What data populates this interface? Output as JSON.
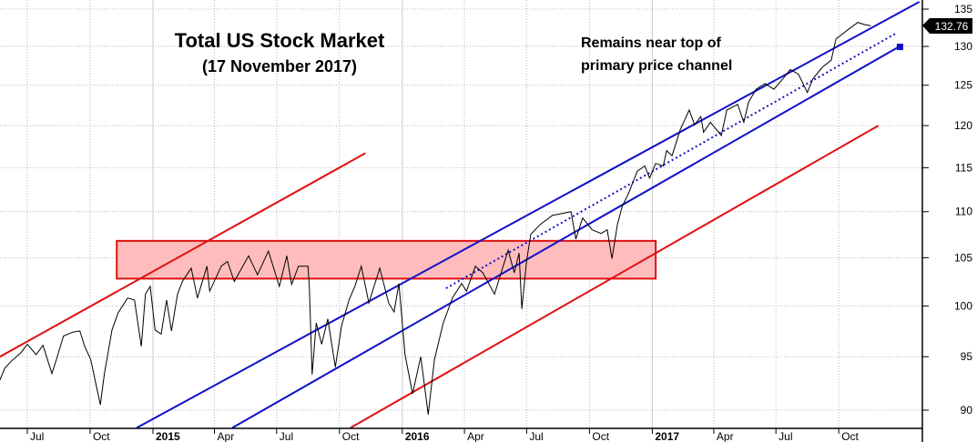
{
  "title": "Total US Stock Market",
  "subtitle": "(17 November 2017)",
  "annotation": [
    "Remains near top of",
    "primary price channel"
  ],
  "last_price_label": "132.76",
  "chart_data": {
    "type": "line",
    "title": "Total US Stock Market",
    "subtitle": "(17 November 2017)",
    "y_scale": "log",
    "ylim": [
      88.4,
      136
    ],
    "y_ticks": [
      90,
      95,
      100,
      105,
      110,
      115,
      120,
      125,
      130,
      135
    ],
    "x_ticks": [
      {
        "label": "Jul",
        "date": "2014-07-01",
        "year": false
      },
      {
        "label": "Oct",
        "date": "2014-10-01",
        "year": false
      },
      {
        "label": "2015",
        "date": "2015-01-01",
        "year": true
      },
      {
        "label": "Apr",
        "date": "2015-04-01",
        "year": false
      },
      {
        "label": "Jul",
        "date": "2015-07-01",
        "year": false
      },
      {
        "label": "Oct",
        "date": "2015-10-01",
        "year": false
      },
      {
        "label": "2016",
        "date": "2016-01-01",
        "year": true
      },
      {
        "label": "Apr",
        "date": "2016-04-01",
        "year": false
      },
      {
        "label": "Jul",
        "date": "2016-07-01",
        "year": false
      },
      {
        "label": "Oct",
        "date": "2016-10-01",
        "year": false
      },
      {
        "label": "2017",
        "date": "2017-01-01",
        "year": true
      },
      {
        "label": "Apr",
        "date": "2017-04-01",
        "year": false
      },
      {
        "label": "Jul",
        "date": "2017-07-01",
        "year": false
      },
      {
        "label": "Oct",
        "date": "2017-10-01",
        "year": false
      }
    ],
    "grid": true,
    "series": [
      {
        "color": "#000000",
        "points": [
          [
            "2014-05-22",
            92.8
          ],
          [
            "2014-05-29",
            93.9
          ],
          [
            "2014-06-08",
            94.6
          ],
          [
            "2014-06-22",
            95.4
          ],
          [
            "2014-07-01",
            96.2
          ],
          [
            "2014-07-14",
            95.2
          ],
          [
            "2014-07-24",
            96.1
          ],
          [
            "2014-08-06",
            93.4
          ],
          [
            "2014-08-13",
            94.8
          ],
          [
            "2014-08-23",
            97.0
          ],
          [
            "2014-09-06",
            97.4
          ],
          [
            "2014-09-16",
            97.5
          ],
          [
            "2014-09-23",
            96.0
          ],
          [
            "2014-10-02",
            94.7
          ],
          [
            "2014-10-16",
            90.5
          ],
          [
            "2014-10-22",
            93.4
          ],
          [
            "2014-11-02",
            97.6
          ],
          [
            "2014-11-11",
            99.3
          ],
          [
            "2014-11-25",
            100.8
          ],
          [
            "2014-12-05",
            100.6
          ],
          [
            "2014-12-15",
            96.0
          ],
          [
            "2014-12-21",
            101.2
          ],
          [
            "2014-12-28",
            102.0
          ],
          [
            "2015-01-04",
            97.6
          ],
          [
            "2015-01-13",
            97.2
          ],
          [
            "2015-01-21",
            100.6
          ],
          [
            "2015-01-28",
            97.5
          ],
          [
            "2015-02-06",
            101.2
          ],
          [
            "2015-02-13",
            102.5
          ],
          [
            "2015-02-26",
            103.9
          ],
          [
            "2015-03-07",
            100.8
          ],
          [
            "2015-03-21",
            104.1
          ],
          [
            "2015-03-25",
            101.5
          ],
          [
            "2015-04-11",
            104.1
          ],
          [
            "2015-04-20",
            104.6
          ],
          [
            "2015-04-30",
            102.5
          ],
          [
            "2015-05-21",
            105.2
          ],
          [
            "2015-06-03",
            103.2
          ],
          [
            "2015-06-19",
            105.7
          ],
          [
            "2015-07-05",
            102.0
          ],
          [
            "2015-07-16",
            105.2
          ],
          [
            "2015-07-23",
            102.2
          ],
          [
            "2015-08-02",
            104.1
          ],
          [
            "2015-08-16",
            104.1
          ],
          [
            "2015-08-18",
            101.8
          ],
          [
            "2015-08-22",
            93.3
          ],
          [
            "2015-08-28",
            98.3
          ],
          [
            "2015-09-05",
            96.2
          ],
          [
            "2015-09-14",
            98.7
          ],
          [
            "2015-09-25",
            94.0
          ],
          [
            "2015-10-04",
            98.0
          ],
          [
            "2015-10-15",
            100.6
          ],
          [
            "2015-10-24",
            102.1
          ],
          [
            "2015-11-02",
            104.1
          ],
          [
            "2015-11-13",
            100.3
          ],
          [
            "2015-11-29",
            103.9
          ],
          [
            "2015-12-12",
            100.3
          ],
          [
            "2015-12-20",
            99.4
          ],
          [
            "2015-12-27",
            102.3
          ],
          [
            "2016-01-05",
            95.2
          ],
          [
            "2016-01-16",
            91.5
          ],
          [
            "2016-01-28",
            95.0
          ],
          [
            "2016-02-08",
            89.6
          ],
          [
            "2016-02-17",
            94.7
          ],
          [
            "2016-03-01",
            98.3
          ],
          [
            "2016-03-15",
            100.9
          ],
          [
            "2016-03-28",
            102.3
          ],
          [
            "2016-04-04",
            101.5
          ],
          [
            "2016-04-17",
            104.1
          ],
          [
            "2016-04-28",
            103.4
          ],
          [
            "2016-05-15",
            101.2
          ],
          [
            "2016-06-04",
            105.8
          ],
          [
            "2016-06-13",
            103.4
          ],
          [
            "2016-06-20",
            105.5
          ],
          [
            "2016-06-24",
            99.7
          ],
          [
            "2016-07-01",
            104.7
          ],
          [
            "2016-07-07",
            107.5
          ],
          [
            "2016-07-21",
            108.6
          ],
          [
            "2016-08-08",
            109.6
          ],
          [
            "2016-08-22",
            109.8
          ],
          [
            "2016-09-04",
            110.0
          ],
          [
            "2016-09-11",
            107.0
          ],
          [
            "2016-09-21",
            109.3
          ],
          [
            "2016-10-05",
            108.0
          ],
          [
            "2016-10-18",
            107.6
          ],
          [
            "2016-10-27",
            108.0
          ],
          [
            "2016-11-03",
            104.9
          ],
          [
            "2016-11-11",
            108.6
          ],
          [
            "2016-11-18",
            110.6
          ],
          [
            "2016-11-27",
            112.0
          ],
          [
            "2016-12-10",
            114.6
          ],
          [
            "2016-12-21",
            115.2
          ],
          [
            "2016-12-28",
            113.8
          ],
          [
            "2017-01-06",
            115.5
          ],
          [
            "2017-01-17",
            115.2
          ],
          [
            "2017-01-22",
            117.0
          ],
          [
            "2017-01-30",
            116.4
          ],
          [
            "2017-02-11",
            119.5
          ],
          [
            "2017-02-24",
            121.9
          ],
          [
            "2017-03-04",
            120.1
          ],
          [
            "2017-03-13",
            121.1
          ],
          [
            "2017-03-17",
            119.2
          ],
          [
            "2017-03-27",
            120.4
          ],
          [
            "2017-04-12",
            118.8
          ],
          [
            "2017-04-20",
            121.9
          ],
          [
            "2017-05-06",
            122.6
          ],
          [
            "2017-05-15",
            120.4
          ],
          [
            "2017-05-22",
            122.9
          ],
          [
            "2017-06-02",
            124.5
          ],
          [
            "2017-06-15",
            125.2
          ],
          [
            "2017-06-28",
            124.5
          ],
          [
            "2017-07-11",
            125.8
          ],
          [
            "2017-07-22",
            127.0
          ],
          [
            "2017-08-03",
            126.4
          ],
          [
            "2017-08-16",
            124.1
          ],
          [
            "2017-08-24",
            125.8
          ],
          [
            "2017-09-07",
            127.3
          ],
          [
            "2017-09-20",
            128.2
          ],
          [
            "2017-09-27",
            131.0
          ],
          [
            "2017-10-03",
            131.4
          ],
          [
            "2017-10-17",
            132.4
          ],
          [
            "2017-10-29",
            133.2
          ],
          [
            "2017-11-08",
            132.9
          ],
          [
            "2017-11-17",
            132.76
          ]
        ]
      }
    ],
    "last_value": 132.76,
    "trendlines": [
      {
        "role": "outer-channel-upper",
        "color": "#e01010",
        "style": "solid",
        "from": [
          "2014-05-22",
          95.0
        ],
        "to": [
          "2015-11-08",
          116.7
        ]
      },
      {
        "role": "outer-channel-lower",
        "color": "#e01010",
        "style": "solid",
        "from": [
          "2015-10-17",
          88.4
        ],
        "to": [
          "2017-11-28",
          120.0
        ]
      },
      {
        "role": "primary-channel-upper",
        "color": "#1010c8",
        "style": "solid",
        "from": [
          "2014-12-08",
          88.4
        ],
        "to": [
          "2018-01-27",
          136.0
        ]
      },
      {
        "role": "primary-channel-lower",
        "color": "#1010c8",
        "style": "solid",
        "from": [
          "2015-04-27",
          88.4
        ],
        "to": [
          "2017-12-29",
          130.0
        ],
        "end_marker": true
      },
      {
        "role": "primary-channel-mid",
        "color": "#1010c8",
        "style": "dotted",
        "from": [
          "2016-03-05",
          101.8
        ],
        "to": [
          "2017-12-25",
          131.8
        ]
      }
    ],
    "zones": [
      {
        "color": "#ffbcbc",
        "border": "#e01010",
        "from_date": "2014-11-09",
        "to_date": "2017-01-06",
        "low": 102.8,
        "high": 106.8
      }
    ]
  }
}
